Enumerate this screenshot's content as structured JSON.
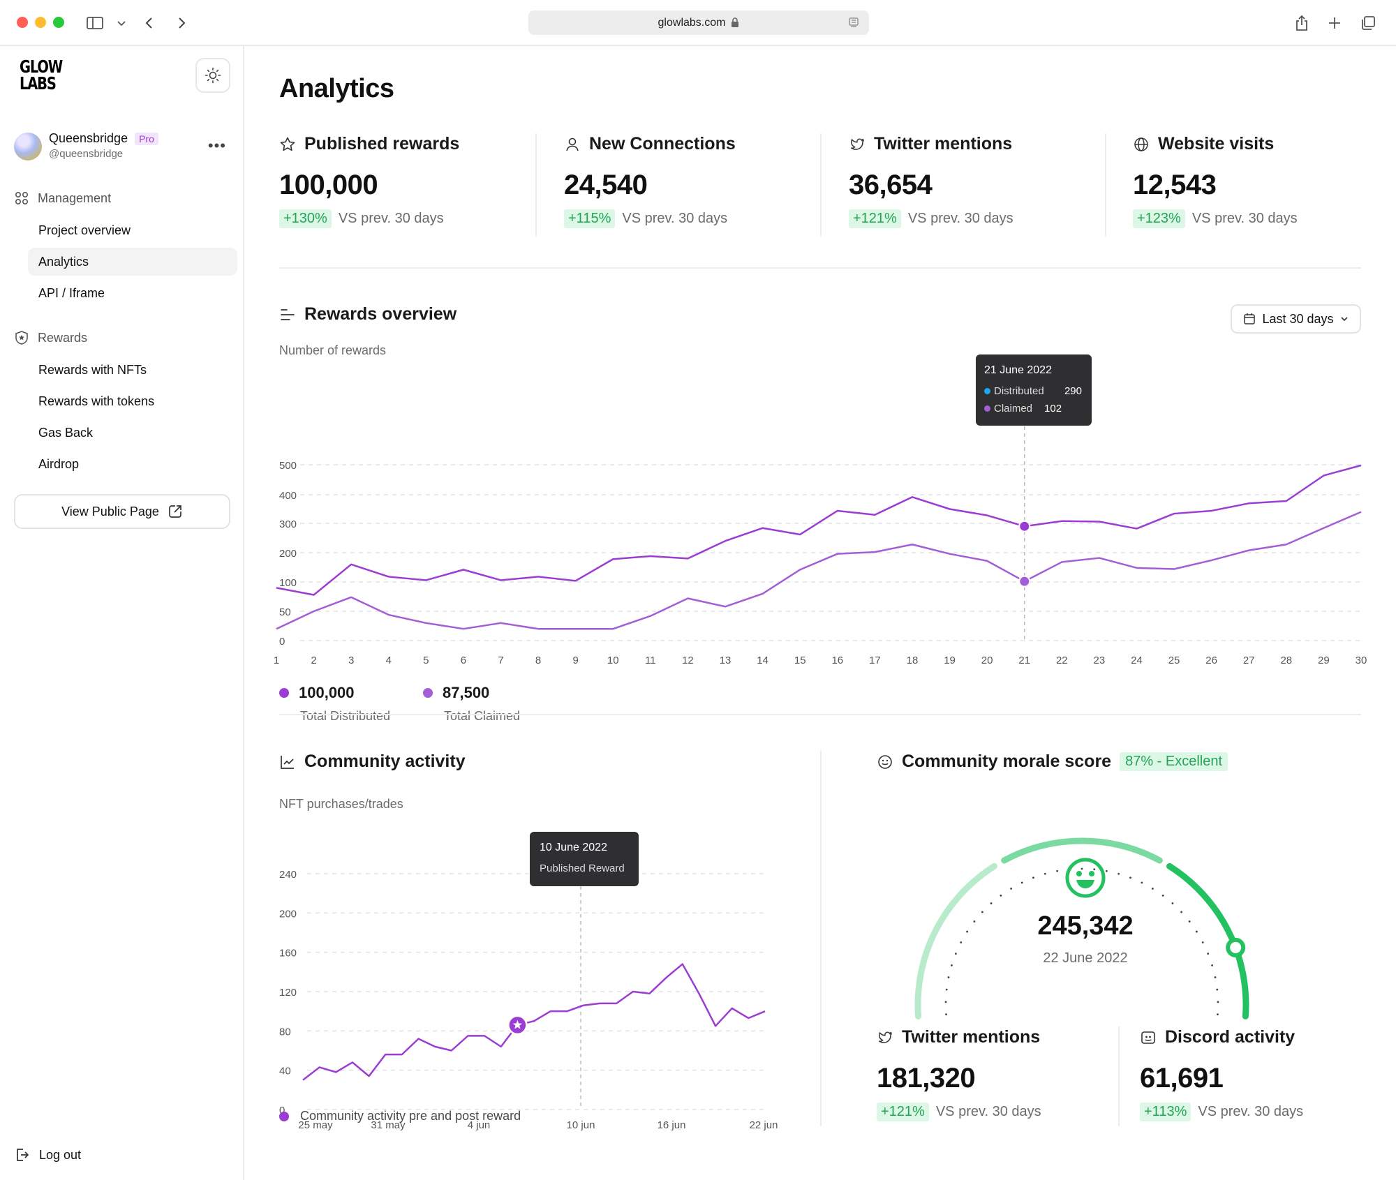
{
  "browser": {
    "url": "glowlabs.com"
  },
  "brand": {
    "logo_line1": "GLOW",
    "logo_line2": "LABS",
    "accent": "#9b3dd3",
    "green": "#23a455"
  },
  "user": {
    "name": "Queensbridge",
    "badge": "Pro",
    "handle": "@queensbridge"
  },
  "sidebar": {
    "management_label": "Management",
    "management_items": [
      "Project overview",
      "Analytics",
      "API / Iframe"
    ],
    "rewards_label": "Rewards",
    "rewards_items": [
      "Rewards with NFTs",
      "Rewards with tokens",
      "Gas Back",
      "Airdrop"
    ],
    "public_button": "View Public Page",
    "logout": "Log out"
  },
  "page": {
    "title": "Analytics"
  },
  "stats": [
    {
      "label": "Published rewards",
      "icon": "star-icon",
      "value": "100,000",
      "change": "+130%",
      "compare": "VS prev. 30 days"
    },
    {
      "label": "New Connections",
      "icon": "user-icon",
      "value": "24,540",
      "change": "+115%",
      "compare": "VS prev. 30 days"
    },
    {
      "label": "Twitter mentions",
      "icon": "twitter-icon",
      "value": "36,654",
      "change": "+121%",
      "compare": "VS prev. 30 days"
    },
    {
      "label": "Website visits",
      "icon": "globe-icon",
      "value": "12,543",
      "change": "+123%",
      "compare": "VS prev. 30 days"
    }
  ],
  "rewards_overview": {
    "title": "Rewards overview",
    "range_button": "Last 30 days",
    "legend": [
      {
        "value": "100,000",
        "label": "Total Distributed",
        "color": "#9b3dd3"
      },
      {
        "value": "87,500",
        "label": "Total Claimed",
        "color": "#a25ed6"
      }
    ],
    "tooltip": {
      "date": "21 June 2022",
      "rows": [
        {
          "label": "Distributed",
          "value": "290",
          "color": "#1ea7f2"
        },
        {
          "label": "Claimed",
          "value": "102",
          "color": "#a25ed6"
        }
      ]
    }
  },
  "community_activity": {
    "title": "Community activity",
    "legend": "Community activity pre and post reward",
    "tooltip": {
      "date": "10 June 2022",
      "label": "Published Reward"
    }
  },
  "morale": {
    "title": "Community morale score",
    "badge": "87% - Excellent",
    "value": "245,342",
    "date": "22 June 2022",
    "gauge_fraction": 0.87
  },
  "social": [
    {
      "label": "Twitter mentions",
      "icon": "twitter-icon",
      "value": "181,320",
      "change": "+121%",
      "compare": "VS prev. 30 days"
    },
    {
      "label": "Discord activity",
      "icon": "discord-icon",
      "value": "61,691",
      "change": "+113%",
      "compare": "VS prev. 30 days"
    }
  ],
  "chart_data": [
    {
      "type": "line",
      "title": "Rewards overview",
      "ylabel": "Number of rewards",
      "ylim": [
        0,
        500
      ],
      "yticks": [
        0,
        50,
        100,
        200,
        300,
        400,
        500
      ],
      "x": [
        1,
        2,
        3,
        4,
        5,
        6,
        7,
        8,
        9,
        10,
        11,
        12,
        13,
        14,
        15,
        16,
        17,
        18,
        19,
        20,
        21,
        22,
        23,
        24,
        25,
        26,
        27,
        28,
        29,
        30
      ],
      "series": [
        {
          "name": "Distributed",
          "color": "#9b3dd3",
          "values": [
            90,
            78,
            160,
            118,
            106,
            142,
            106,
            118,
            104,
            178,
            188,
            180,
            240,
            284,
            262,
            344,
            330,
            392,
            350,
            328,
            290,
            308,
            306,
            282,
            334,
            344,
            370,
            378,
            464,
            498
          ]
        },
        {
          "name": "Claimed",
          "color": "#a25ed6",
          "values": [
            20,
            50,
            74,
            44,
            30,
            20,
            30,
            20,
            20,
            20,
            42,
            72,
            58,
            80,
            142,
            196,
            202,
            228,
            196,
            172,
            102,
            168,
            182,
            148,
            144,
            174,
            208,
            228,
            284,
            340
          ]
        }
      ],
      "grid": true,
      "legend_position": "bottom-left"
    },
    {
      "type": "line",
      "title": "Community activity",
      "ylabel": "NFT purchases/trades",
      "ylim": [
        0,
        240
      ],
      "yticks": [
        0,
        40,
        80,
        120,
        160,
        200,
        240
      ],
      "xtick_labels": [
        "25 may",
        "31 may",
        "4 jun",
        "10 jun",
        "16 jun",
        "22 jun"
      ],
      "series": [
        {
          "name": "Community activity pre and post reward",
          "color": "#9b3dd3",
          "values": [
            30,
            43,
            38,
            48,
            34,
            56,
            56,
            72,
            64,
            60,
            75,
            75,
            64,
            86,
            90,
            100,
            100,
            106,
            108,
            108,
            120,
            118,
            134,
            148,
            118,
            85,
            103,
            93,
            100
          ]
        }
      ],
      "grid": true,
      "legend_position": "bottom-left"
    }
  ]
}
